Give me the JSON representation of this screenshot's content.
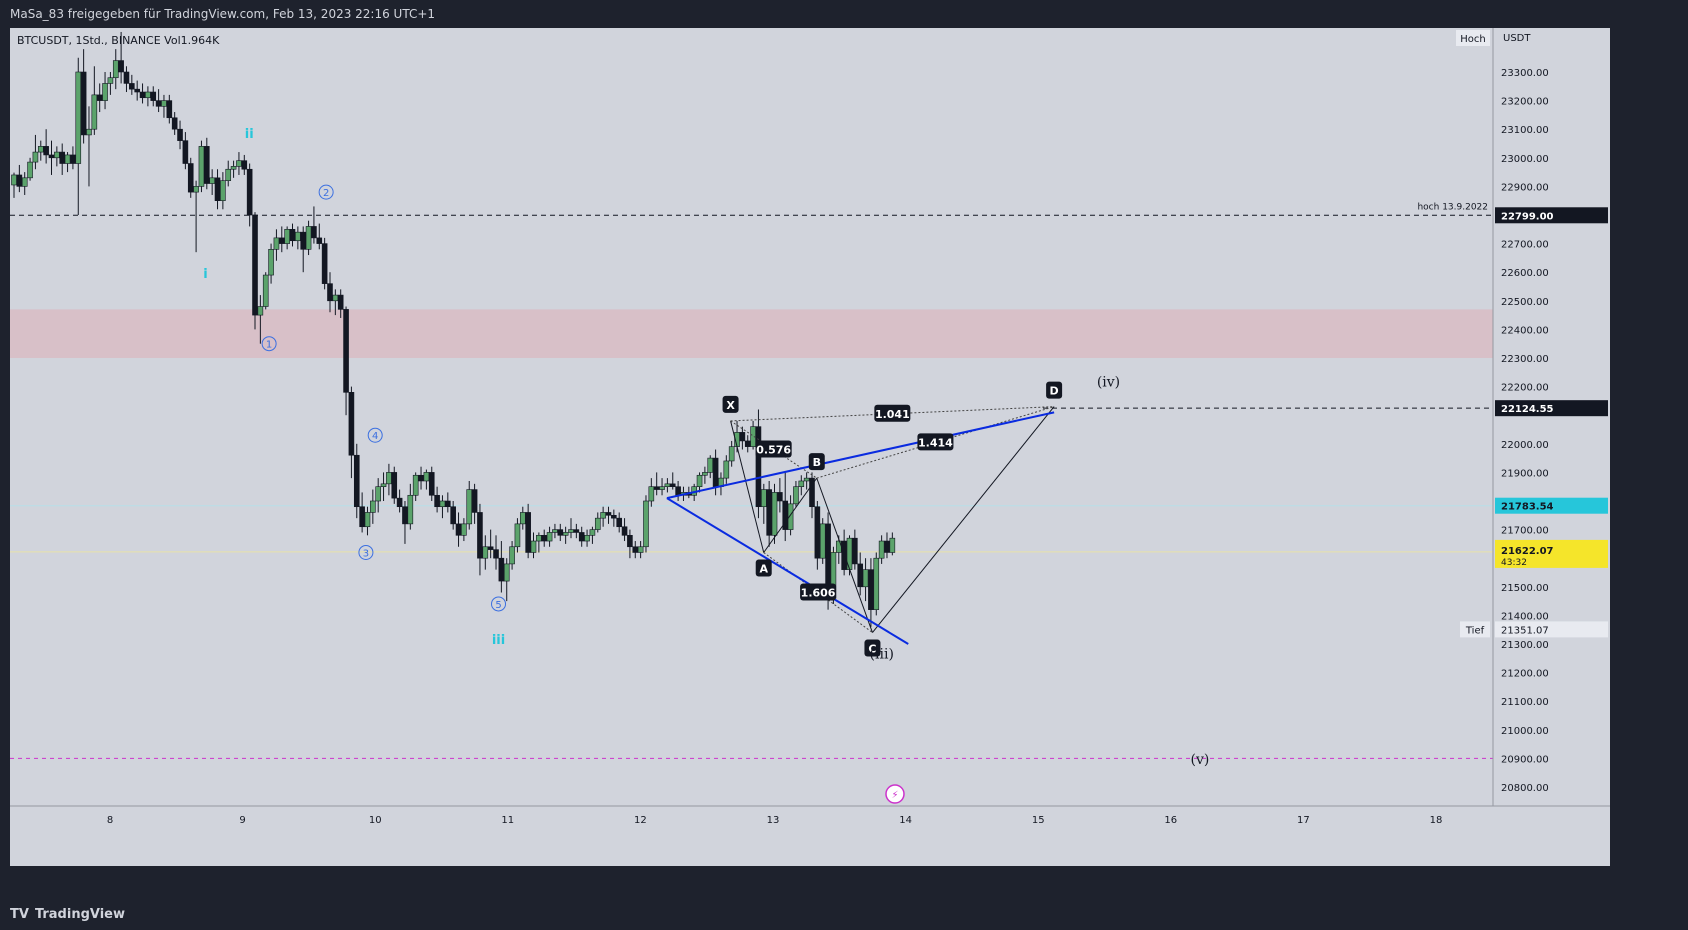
{
  "header": {
    "shared_by": "MaSa_83 freigegeben für TradingView.com, Feb 13, 2023 22:16 UTC+1"
  },
  "chart": {
    "symbol": "BTCUSDT, 1Std., BINANCE  Vol1.964K",
    "currency": "USDT",
    "hoch_label": "Hoch",
    "tief_label": "Tief",
    "hoch_annotation": "hoch 13.9.2022",
    "price_labels": [
      "23300.00",
      "23200.00",
      "23100.00",
      "23000.00",
      "22900.00",
      "22700.00",
      "22600.00",
      "22500.00",
      "22400.00",
      "22300.00",
      "22200.00",
      "22000.00",
      "21900.00",
      "21700.00",
      "21500.00",
      "21400.00",
      "21300.00",
      "21200.00",
      "21100.00",
      "21000.00",
      "20900.00",
      "20800.00"
    ],
    "price_values": [
      23300,
      23200,
      23100,
      23000,
      22900,
      22700,
      22600,
      22500,
      22400,
      22300,
      22200,
      22000,
      21900,
      21700,
      21500,
      21400,
      21300,
      21200,
      21100,
      21000,
      20900,
      20800
    ],
    "time_labels": [
      "8",
      "9",
      "10",
      "11",
      "12",
      "13",
      "14",
      "15",
      "16",
      "17",
      "18"
    ],
    "marks": {
      "hoch_line": "22799.00",
      "d_line": "22124.55",
      "blue_price": "21783.54",
      "current_price": "21622.07",
      "countdown": "43:32",
      "tief": "21351.07"
    },
    "colors": {
      "bg": "#d1d4dc",
      "up": "#5ba36b",
      "down": "#131722",
      "trend": "#0a2be0",
      "zone": "#d8bfc6",
      "purple": "#cc33cc",
      "cyan": "#26c6da",
      "wave": "#3b6fe0",
      "current": "#f5e52a"
    },
    "zone": [
      22300,
      22470
    ],
    "candles": [
      [
        22905,
        22948,
        22860,
        22940
      ],
      [
        22940,
        22975,
        22880,
        22900
      ],
      [
        22900,
        22950,
        22870,
        22930
      ],
      [
        22930,
        23000,
        22920,
        22985
      ],
      [
        22985,
        23080,
        22960,
        23020
      ],
      [
        23020,
        23060,
        22990,
        23040
      ],
      [
        23040,
        23100,
        22980,
        23010
      ],
      [
        23010,
        23060,
        22940,
        23000
      ],
      [
        23000,
        23040,
        22970,
        23020
      ],
      [
        23020,
        23050,
        22940,
        22980
      ],
      [
        22980,
        23020,
        22950,
        23010
      ],
      [
        23010,
        23040,
        22960,
        22980
      ],
      [
        22980,
        23350,
        22800,
        23300
      ],
      [
        23300,
        23380,
        23050,
        23080
      ],
      [
        23080,
        23180,
        22900,
        23100
      ],
      [
        23100,
        23320,
        23080,
        23220
      ],
      [
        23220,
        23260,
        23160,
        23200
      ],
      [
        23200,
        23300,
        23170,
        23260
      ],
      [
        23260,
        23300,
        23220,
        23280
      ],
      [
        23280,
        23380,
        23240,
        23340
      ],
      [
        23340,
        23440,
        23260,
        23300
      ],
      [
        23300,
        23320,
        23230,
        23260
      ],
      [
        23260,
        23290,
        23220,
        23240
      ],
      [
        23240,
        23270,
        23200,
        23230
      ],
      [
        23230,
        23260,
        23190,
        23210
      ],
      [
        23210,
        23250,
        23180,
        23230
      ],
      [
        23230,
        23250,
        23180,
        23200
      ],
      [
        23200,
        23240,
        23160,
        23180
      ],
      [
        23180,
        23220,
        23140,
        23200
      ],
      [
        23200,
        23220,
        23120,
        23140
      ],
      [
        23140,
        23160,
        23080,
        23100
      ],
      [
        23100,
        23130,
        23030,
        23060
      ],
      [
        23060,
        23090,
        22960,
        22980
      ],
      [
        22980,
        23000,
        22860,
        22880
      ],
      [
        22880,
        22920,
        22670,
        22900
      ],
      [
        22900,
        23060,
        22880,
        23040
      ],
      [
        23040,
        23070,
        22890,
        22910
      ],
      [
        22910,
        22960,
        22870,
        22930
      ],
      [
        22930,
        22960,
        22820,
        22850
      ],
      [
        22850,
        22950,
        22820,
        22920
      ],
      [
        22920,
        22990,
        22900,
        22960
      ],
      [
        22960,
        22990,
        22930,
        22970
      ],
      [
        22970,
        23020,
        22940,
        22990
      ],
      [
        22990,
        23010,
        22940,
        22960
      ],
      [
        22960,
        22980,
        22760,
        22800
      ],
      [
        22800,
        22810,
        22400,
        22450
      ],
      [
        22450,
        22520,
        22350,
        22480
      ],
      [
        22480,
        22600,
        22470,
        22590
      ],
      [
        22590,
        22700,
        22560,
        22680
      ],
      [
        22680,
        22750,
        22640,
        22720
      ],
      [
        22720,
        22760,
        22670,
        22700
      ],
      [
        22700,
        22760,
        22680,
        22750
      ],
      [
        22750,
        22770,
        22690,
        22710
      ],
      [
        22710,
        22760,
        22680,
        22740
      ],
      [
        22740,
        22760,
        22600,
        22680
      ],
      [
        22680,
        22780,
        22660,
        22760
      ],
      [
        22760,
        22830,
        22700,
        22720
      ],
      [
        22720,
        22770,
        22680,
        22700
      ],
      [
        22700,
        22720,
        22540,
        22560
      ],
      [
        22560,
        22600,
        22460,
        22500
      ],
      [
        22500,
        22540,
        22450,
        22520
      ],
      [
        22520,
        22540,
        22440,
        22470
      ],
      [
        22470,
        22480,
        22100,
        22180
      ],
      [
        22180,
        22200,
        21880,
        21960
      ],
      [
        21960,
        22000,
        21740,
        21780
      ],
      [
        21780,
        21830,
        21690,
        21710
      ],
      [
        21710,
        21780,
        21680,
        21760
      ],
      [
        21760,
        21840,
        21720,
        21800
      ],
      [
        21800,
        21880,
        21760,
        21850
      ],
      [
        21850,
        21900,
        21800,
        21860
      ],
      [
        21860,
        21930,
        21820,
        21900
      ],
      [
        21900,
        21920,
        21790,
        21810
      ],
      [
        21810,
        21840,
        21760,
        21780
      ],
      [
        21780,
        21800,
        21650,
        21720
      ],
      [
        21720,
        21860,
        21700,
        21820
      ],
      [
        21820,
        21900,
        21800,
        21890
      ],
      [
        21890,
        21920,
        21840,
        21870
      ],
      [
        21870,
        21910,
        21840,
        21900
      ],
      [
        21900,
        21920,
        21800,
        21820
      ],
      [
        21820,
        21850,
        21760,
        21780
      ],
      [
        21780,
        21820,
        21740,
        21800
      ],
      [
        21800,
        21830,
        21760,
        21780
      ],
      [
        21780,
        21800,
        21700,
        21720
      ],
      [
        21720,
        21760,
        21640,
        21680
      ],
      [
        21680,
        21740,
        21660,
        21720
      ],
      [
        21720,
        21870,
        21700,
        21840
      ],
      [
        21840,
        21860,
        21720,
        21760
      ],
      [
        21760,
        21790,
        21540,
        21600
      ],
      [
        21600,
        21680,
        21560,
        21640
      ],
      [
        21640,
        21700,
        21600,
        21630
      ],
      [
        21630,
        21680,
        21560,
        21600
      ],
      [
        21600,
        21660,
        21480,
        21520
      ],
      [
        21520,
        21600,
        21450,
        21580
      ],
      [
        21580,
        21660,
        21560,
        21640
      ],
      [
        21640,
        21740,
        21620,
        21720
      ],
      [
        21720,
        21780,
        21700,
        21760
      ],
      [
        21760,
        21790,
        21600,
        21620
      ],
      [
        21620,
        21690,
        21600,
        21660
      ],
      [
        21660,
        21690,
        21620,
        21680
      ],
      [
        21680,
        21700,
        21640,
        21660
      ],
      [
        21660,
        21710,
        21640,
        21690
      ],
      [
        21690,
        21720,
        21670,
        21700
      ],
      [
        21700,
        21720,
        21660,
        21680
      ],
      [
        21680,
        21710,
        21650,
        21690
      ],
      [
        21690,
        21740,
        21670,
        21700
      ],
      [
        21700,
        21720,
        21670,
        21690
      ],
      [
        21690,
        21710,
        21640,
        21660
      ],
      [
        21660,
        21700,
        21640,
        21680
      ],
      [
        21680,
        21710,
        21650,
        21700
      ],
      [
        21700,
        21760,
        21690,
        21740
      ],
      [
        21740,
        21780,
        21710,
        21760
      ],
      [
        21760,
        21780,
        21720,
        21750
      ],
      [
        21750,
        21770,
        21710,
        21740
      ],
      [
        21740,
        21760,
        21690,
        21710
      ],
      [
        21710,
        21740,
        21660,
        21680
      ],
      [
        21680,
        21700,
        21600,
        21640
      ],
      [
        21640,
        21660,
        21600,
        21620
      ],
      [
        21620,
        21660,
        21600,
        21640
      ],
      [
        21640,
        21820,
        21620,
        21800
      ],
      [
        21800,
        21880,
        21780,
        21850
      ],
      [
        21850,
        21900,
        21820,
        21840
      ],
      [
        21840,
        21880,
        21820,
        21850
      ],
      [
        21850,
        21880,
        21830,
        21860
      ],
      [
        21860,
        21900,
        21840,
        21850
      ],
      [
        21850,
        21870,
        21800,
        21820
      ],
      [
        21820,
        21850,
        21800,
        21830
      ],
      [
        21830,
        21850,
        21810,
        21820
      ],
      [
        21820,
        21860,
        21800,
        21850
      ],
      [
        21850,
        21900,
        21830,
        21890
      ],
      [
        21890,
        21920,
        21860,
        21900
      ],
      [
        21900,
        21960,
        21880,
        21950
      ],
      [
        21950,
        21980,
        21820,
        21850
      ],
      [
        21850,
        21900,
        21820,
        21880
      ],
      [
        21880,
        21960,
        21860,
        21940
      ],
      [
        21940,
        22010,
        21920,
        21990
      ],
      [
        21990,
        22080,
        21970,
        22040
      ],
      [
        22040,
        22060,
        21980,
        22010
      ],
      [
        22010,
        22030,
        21970,
        21990
      ],
      [
        21990,
        22080,
        21980,
        22060
      ],
      [
        22060,
        22120,
        21740,
        21780
      ],
      [
        21780,
        21860,
        21720,
        21840
      ],
      [
        21840,
        21870,
        21640,
        21680
      ],
      [
        21680,
        21860,
        21650,
        21830
      ],
      [
        21830,
        21880,
        21760,
        21800
      ],
      [
        21800,
        21900,
        21660,
        21700
      ],
      [
        21700,
        21820,
        21680,
        21790
      ],
      [
        21790,
        21870,
        21780,
        21850
      ],
      [
        21850,
        21890,
        21820,
        21870
      ],
      [
        21870,
        21900,
        21840,
        21880
      ],
      [
        21880,
        21900,
        21740,
        21780
      ],
      [
        21780,
        21800,
        21560,
        21600
      ],
      [
        21600,
        21740,
        21580,
        21720
      ],
      [
        21720,
        21760,
        21420,
        21460
      ],
      [
        21460,
        21640,
        21440,
        21620
      ],
      [
        21620,
        21680,
        21580,
        21660
      ],
      [
        21660,
        21700,
        21540,
        21560
      ],
      [
        21560,
        21680,
        21540,
        21670
      ],
      [
        21670,
        21700,
        21560,
        21580
      ],
      [
        21580,
        21620,
        21470,
        21500
      ],
      [
        21500,
        21600,
        21450,
        21560
      ],
      [
        21560,
        21600,
        21360,
        21420
      ],
      [
        21420,
        21620,
        21400,
        21600
      ],
      [
        21600,
        21680,
        21580,
        21660
      ],
      [
        21660,
        21690,
        21600,
        21620
      ],
      [
        21620,
        21690,
        21610,
        21670
      ]
    ],
    "fib_labels": [
      {
        "text": "1.041",
        "kind": "xd"
      },
      {
        "text": "0.576",
        "kind": "xb"
      },
      {
        "text": "1.414",
        "kind": "bd"
      },
      {
        "text": "1.606",
        "kind": "ac"
      }
    ],
    "points": [
      {
        "text": "X",
        "price": 22080,
        "t": 12.68
      },
      {
        "text": "A",
        "price": 21620,
        "t": 12.93
      },
      {
        "text": "B",
        "price": 21880,
        "t": 13.33
      },
      {
        "text": "C",
        "price": 21340,
        "t": 13.75
      },
      {
        "text": "D",
        "price": 22130,
        "t": 15.12
      }
    ],
    "waves": {
      "minor": [
        {
          "text": "1",
          "t": 9.2,
          "price": 22350
        },
        {
          "text": "2",
          "t": 9.63,
          "price": 22880
        },
        {
          "text": "3",
          "t": 9.93,
          "price": 21620
        },
        {
          "text": "4",
          "t": 10.0,
          "price": 22030
        },
        {
          "text": "5",
          "t": 10.93,
          "price": 21440
        }
      ],
      "sub": [
        {
          "text": "i",
          "t": 8.72,
          "price": 22580
        },
        {
          "text": "ii",
          "t": 9.05,
          "price": 23070
        },
        {
          "text": "iii",
          "t": 10.93,
          "price": 21300
        }
      ],
      "major": [
        {
          "text": "(iii)",
          "t": 13.82,
          "price": 21250
        },
        {
          "text": "(iv)",
          "t": 15.53,
          "price": 22200
        },
        {
          "text": "(v)",
          "t": 16.22,
          "price": 20880
        }
      ]
    },
    "trend_upper": [
      [
        12.2,
        21810
      ],
      [
        15.12,
        22110
      ]
    ],
    "trend_lower": [
      [
        12.2,
        21810
      ],
      [
        14.02,
        21300
      ]
    ],
    "purple_level": 20900,
    "lightning_time": 13.92
  },
  "footer": {
    "brand": "TradingView",
    "brand_icon": "tv-logo-icon"
  }
}
